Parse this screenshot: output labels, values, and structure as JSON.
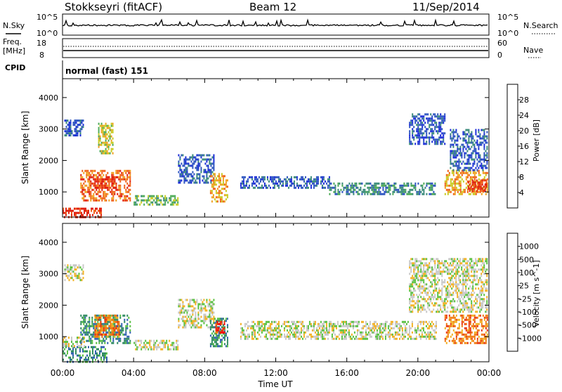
{
  "header": {
    "station": "Stokkseyri (fitACF)",
    "beam": "Beam 12",
    "date": "11/Sep/2014"
  },
  "noise_panel": {
    "left_label": "N.Sky",
    "right_label": "N.Search",
    "left_ticks": [
      "10^5",
      "10^0"
    ],
    "right_ticks": [
      "10^5",
      "10^0"
    ]
  },
  "freq_panel": {
    "left_label_1": "Freq.",
    "left_label_2": "[MHz]",
    "right_label": "Nave",
    "left_ticks": [
      "18",
      "8"
    ],
    "right_ticks": [
      "60",
      "0"
    ]
  },
  "cpid": {
    "label": "CPID",
    "mode_text": "normal (fast) 151"
  },
  "x_axis": {
    "label": "Time UT",
    "ticks": [
      "00:00",
      "04:00",
      "08:00",
      "12:00",
      "16:00",
      "20:00",
      "00:00"
    ]
  },
  "colors": {
    "power_scale": [
      "#1a2bd8",
      "#2e55c0",
      "#3a8a7a",
      "#4caa55",
      "#c8cc22",
      "#f0a020",
      "#f06018",
      "#e02010"
    ],
    "velocity_scale": [
      "#2030c0",
      "#2f60b0",
      "#2e8a60",
      "#58c040",
      "#c8c8c8",
      "#f2b020",
      "#f07a10",
      "#e83510",
      "#ff0000"
    ]
  },
  "chart_data": [
    {
      "type": "heatmap",
      "name": "power",
      "xlabel": "",
      "ylabel": "Slant Range [km]",
      "xlim": [
        0,
        24
      ],
      "ylim": [
        200,
        4600
      ],
      "yticks": [
        "1000",
        "2000",
        "3000",
        "4000"
      ],
      "colorbar_label": "Power [dB]",
      "colorbar_ticks": [
        "4",
        "8",
        "12",
        "16",
        "20",
        "24",
        "28"
      ],
      "regions": [
        {
          "t0": 0.0,
          "t1": 2.2,
          "r0": 200,
          "r1": 500,
          "level": 7
        },
        {
          "t0": 1.0,
          "t1": 3.8,
          "r0": 700,
          "r1": 1700,
          "level": 6
        },
        {
          "t0": 1.8,
          "t1": 3.0,
          "r0": 1100,
          "r1": 1500,
          "level": 7
        },
        {
          "t0": 0.1,
          "t1": 1.2,
          "r0": 2800,
          "r1": 3300,
          "level": 1
        },
        {
          "t0": 2.0,
          "t1": 2.8,
          "r0": 2200,
          "r1": 3200,
          "level": 4
        },
        {
          "t0": 4.0,
          "t1": 6.5,
          "r0": 600,
          "r1": 900,
          "level": 3
        },
        {
          "t0": 6.5,
          "t1": 8.5,
          "r0": 1300,
          "r1": 2200,
          "level": 1
        },
        {
          "t0": 8.3,
          "t1": 9.3,
          "r0": 700,
          "r1": 1600,
          "level": 5
        },
        {
          "t0": 10.0,
          "t1": 15.0,
          "r0": 1100,
          "r1": 1500,
          "level": 1
        },
        {
          "t0": 15.0,
          "t1": 21.0,
          "r0": 900,
          "r1": 1300,
          "level": 2
        },
        {
          "t0": 21.5,
          "t1": 23.9,
          "r0": 900,
          "r1": 1700,
          "level": 5
        },
        {
          "t0": 22.8,
          "t1": 23.9,
          "r0": 1000,
          "r1": 1400,
          "level": 7
        },
        {
          "t0": 19.5,
          "t1": 21.5,
          "r0": 2500,
          "r1": 3500,
          "level": 1
        },
        {
          "t0": 21.8,
          "t1": 23.9,
          "r0": 1700,
          "r1": 3000,
          "level": 1
        }
      ]
    },
    {
      "type": "heatmap",
      "name": "velocity",
      "xlabel": "Time UT",
      "ylabel": "Slant Range [km]",
      "xlim": [
        0,
        24
      ],
      "ylim": [
        200,
        4600
      ],
      "yticks": [
        "1000",
        "2000",
        "3000",
        "4000"
      ],
      "colorbar_label": "Velocity [m s^-1]",
      "colorbar_ticks": [
        "1000",
        "500",
        "100",
        "25",
        "-25",
        "-100",
        "-500",
        "-1000"
      ],
      "regions": [
        {
          "t0": 0.0,
          "t1": 2.5,
          "r0": 200,
          "r1": 700,
          "level": 2
        },
        {
          "t0": 0.0,
          "t1": 1.2,
          "r0": 700,
          "r1": 1000,
          "level": 4
        },
        {
          "t0": 1.0,
          "t1": 3.8,
          "r0": 800,
          "r1": 1700,
          "level": 2
        },
        {
          "t0": 1.8,
          "t1": 3.2,
          "r0": 1000,
          "r1": 1700,
          "level": 6
        },
        {
          "t0": 0.1,
          "t1": 1.2,
          "r0": 2800,
          "r1": 3300,
          "level": 4
        },
        {
          "t0": 4.0,
          "t1": 6.5,
          "r0": 600,
          "r1": 900,
          "level": 4
        },
        {
          "t0": 6.5,
          "t1": 8.5,
          "r0": 1300,
          "r1": 2200,
          "level": 4
        },
        {
          "t0": 8.3,
          "t1": 9.3,
          "r0": 700,
          "r1": 1600,
          "level": 2
        },
        {
          "t0": 8.6,
          "t1": 9.1,
          "r0": 1100,
          "r1": 1500,
          "level": 7
        },
        {
          "t0": 10.0,
          "t1": 21.0,
          "r0": 900,
          "r1": 1500,
          "level": 4
        },
        {
          "t0": 21.5,
          "t1": 23.9,
          "r0": 800,
          "r1": 1700,
          "level": 6
        },
        {
          "t0": 19.5,
          "t1": 23.9,
          "r0": 1800,
          "r1": 3500,
          "level": 4
        }
      ]
    }
  ]
}
